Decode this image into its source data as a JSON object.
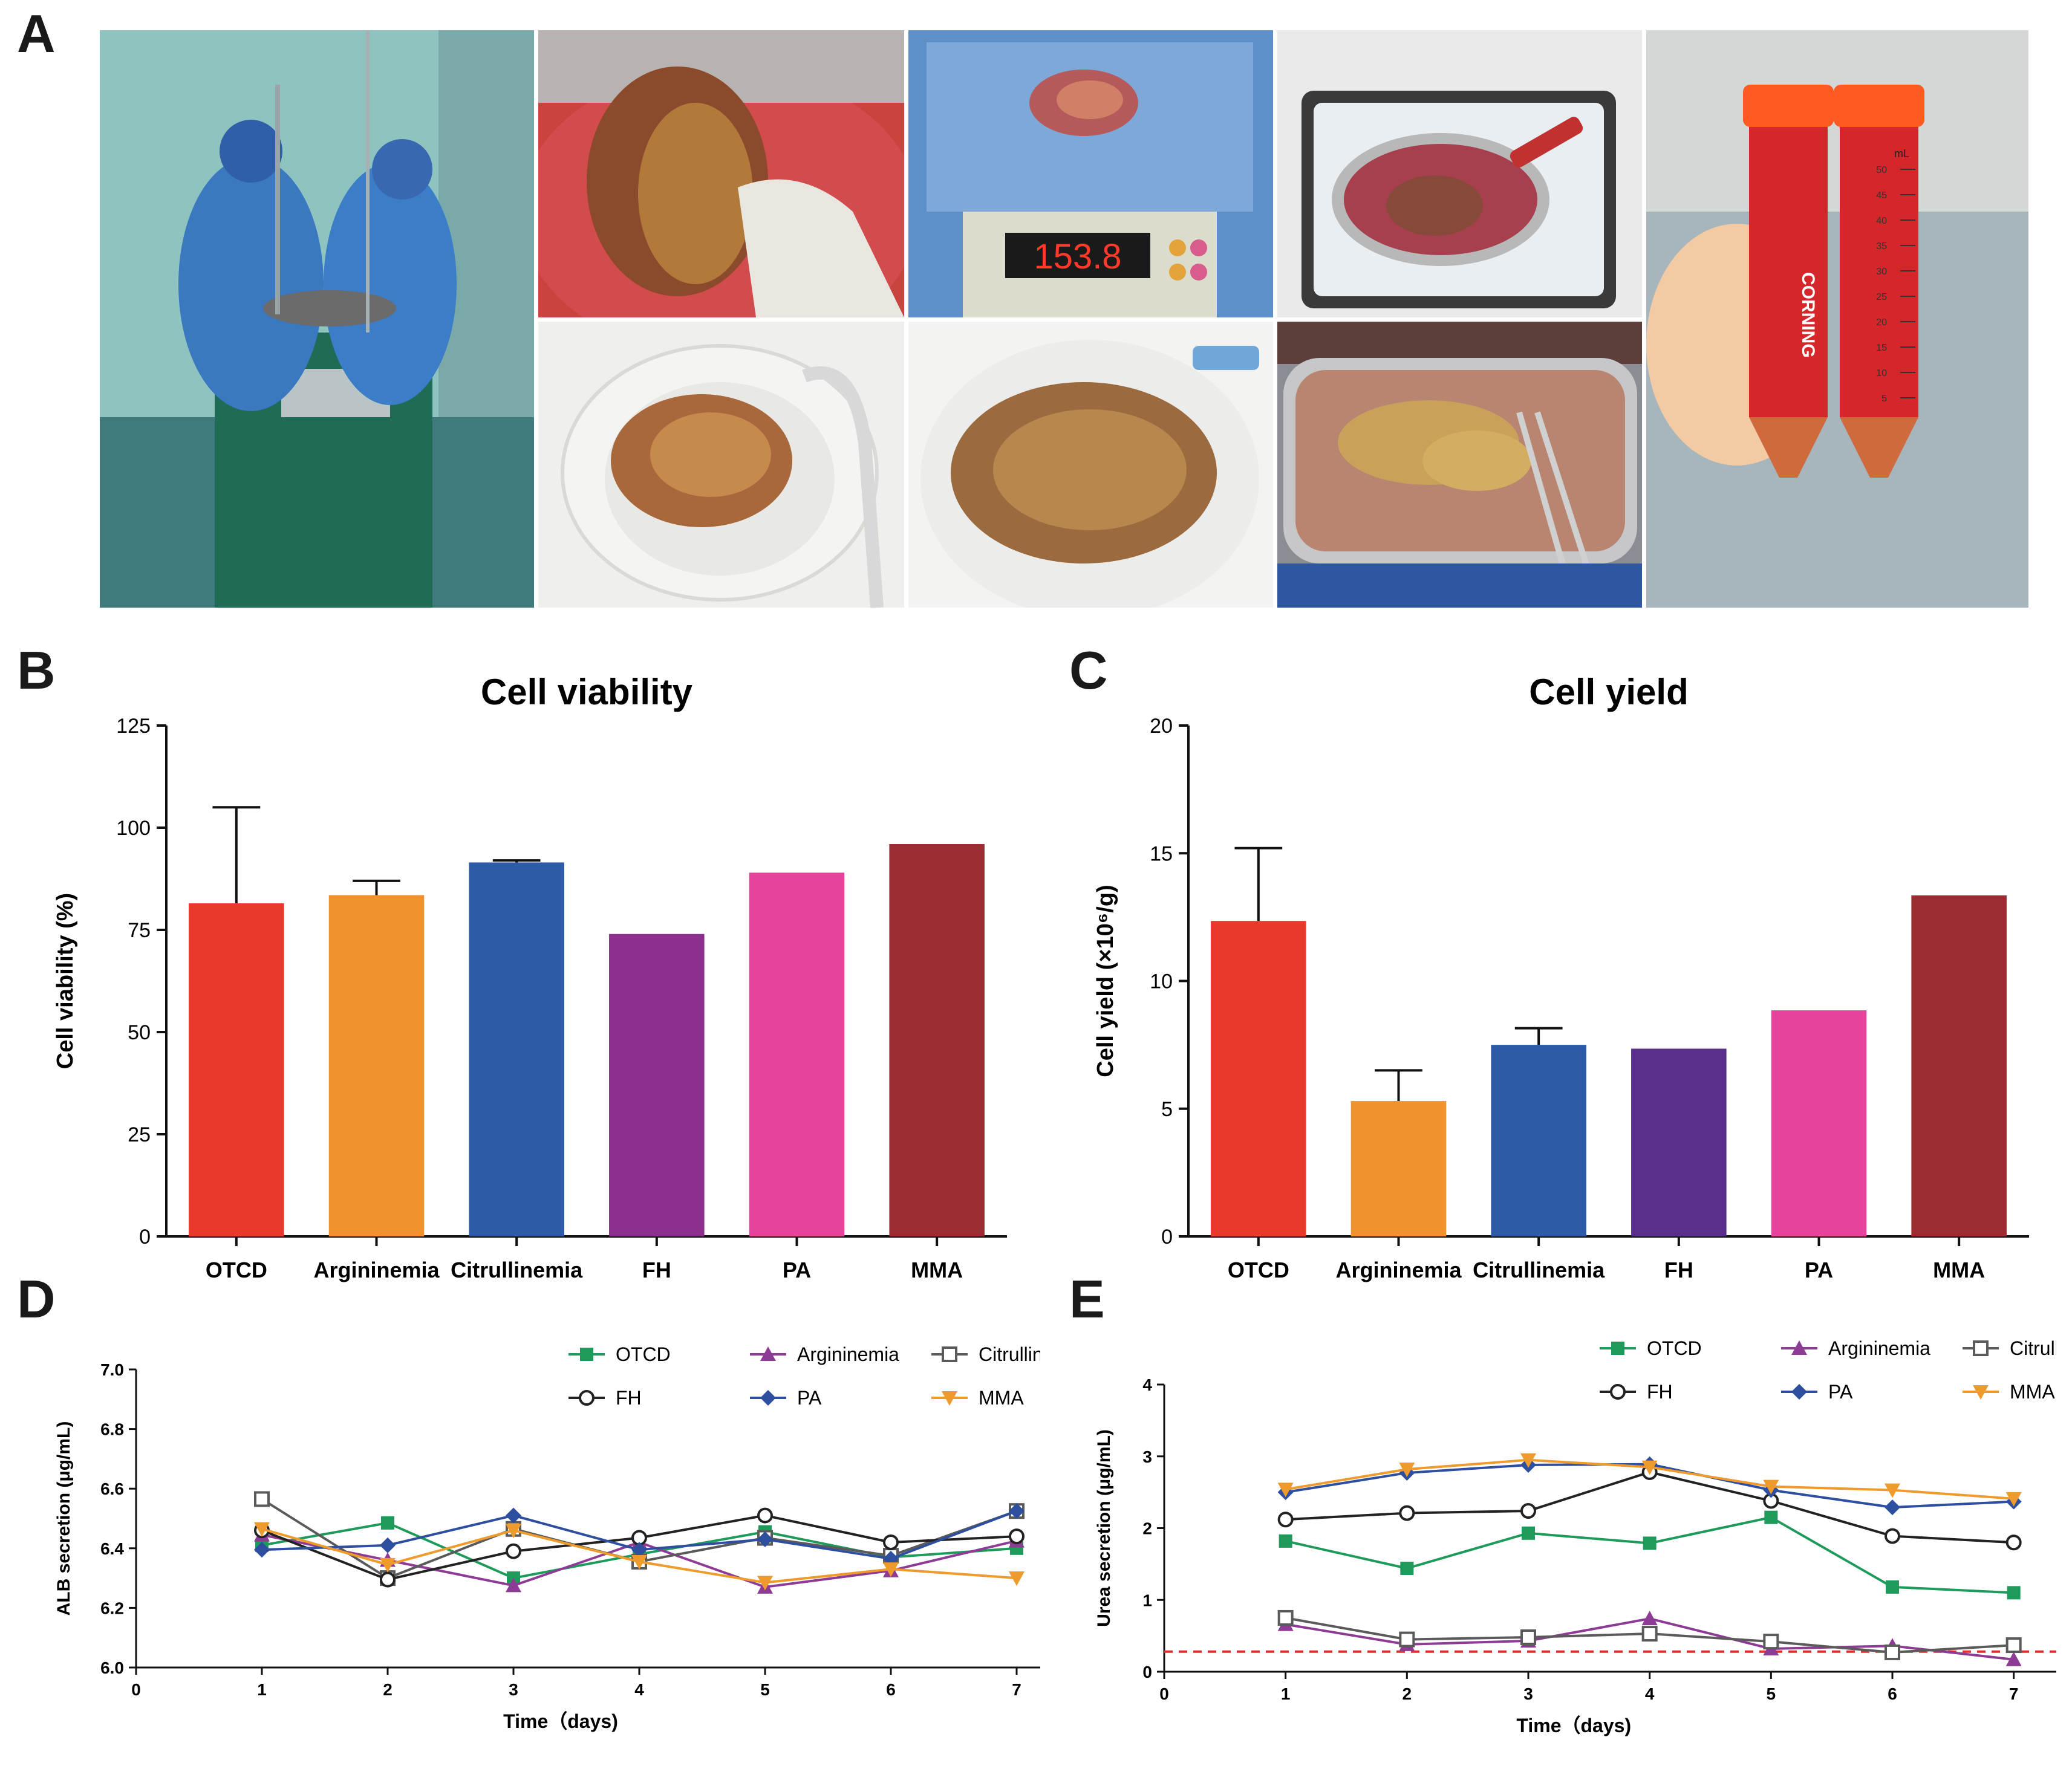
{
  "panels": {
    "A": "A",
    "B": "B",
    "C": "C",
    "D": "D",
    "E": "E"
  },
  "photos": {
    "surgery": "surgery-scene",
    "liver_in_bowl": "liver-in-bowl",
    "scale": {
      "readout": "153.8"
    },
    "perfusion_tray": "perfusion-tray",
    "colander_1": "liver-colander",
    "colander_2": "liver-colander-perfused",
    "digested_tissue": "digested-tissue-tray",
    "tubes": {
      "brand": "CORNING",
      "unit": "mL",
      "marks": [
        "50",
        "45",
        "40",
        "35",
        "30",
        "25",
        "20",
        "15",
        "10",
        "5"
      ]
    }
  },
  "chart_data": [
    {
      "id": "B",
      "type": "bar",
      "title": "Cell viability",
      "xlabel": "",
      "ylabel": "Cell viability (%)",
      "ylim": [
        0,
        125
      ],
      "yticks": [
        0,
        25,
        50,
        75,
        100,
        125
      ],
      "categories": [
        "OTCD",
        "Argininemia",
        "Citrullinemia",
        "FH",
        "PA",
        "MMA"
      ],
      "values": [
        81.5,
        83.5,
        91.5,
        74,
        89,
        96
      ],
      "error_upper": [
        105,
        87,
        92,
        null,
        null,
        null
      ],
      "colors": [
        "#e8392c",
        "#f0922e",
        "#2e5ba8",
        "#8c2f8f",
        "#e5449a",
        "#9b2c31"
      ]
    },
    {
      "id": "C",
      "type": "bar",
      "title": "Cell yield",
      "xlabel": "",
      "ylabel": "Cell yield (×10⁶/g)",
      "ylim": [
        0,
        20
      ],
      "yticks": [
        0,
        5,
        10,
        15,
        20
      ],
      "categories": [
        "OTCD",
        "Argininemia",
        "Citrullinemia",
        "FH",
        "PA",
        "MMA"
      ],
      "values": [
        12.35,
        5.3,
        7.5,
        7.35,
        8.85,
        13.35
      ],
      "error_upper": [
        15.2,
        6.5,
        8.15,
        null,
        null,
        null
      ],
      "colors": [
        "#e8392c",
        "#f0922e",
        "#2e5ba8",
        "#5a2f8c",
        "#e5449a",
        "#9b2c31"
      ]
    },
    {
      "id": "D",
      "type": "line",
      "title": "",
      "xlabel": "Time（days)",
      "ylabel": "ALB secretion (μg/mL)",
      "xlim": [
        0,
        7.5
      ],
      "xticks": [
        0,
        1,
        2,
        3,
        4,
        5,
        6,
        7
      ],
      "ylim": [
        6.0,
        7.0
      ],
      "yticks": [
        "6.0",
        "6.2",
        "6.4",
        "6.6",
        "6.8",
        "7.0"
      ],
      "legend": "top-right",
      "x": [
        1,
        2,
        3,
        4,
        5,
        6,
        7
      ],
      "series": [
        {
          "name": "OTCD",
          "marker": "square",
          "color": "#1e9a5a",
          "values": [
            6.41,
            6.485,
            6.3,
            6.38,
            6.455,
            6.37,
            6.4
          ]
        },
        {
          "name": "Argininemia",
          "marker": "triangle",
          "color": "#8e3b96",
          "values": [
            6.445,
            6.36,
            6.275,
            6.42,
            6.27,
            6.325,
            6.425
          ]
        },
        {
          "name": "Citrullinemia",
          "marker": "open-square",
          "color": "#5a5a5a",
          "values": [
            6.565,
            6.3,
            6.465,
            6.355,
            6.435,
            6.375,
            6.525
          ]
        },
        {
          "name": "FH",
          "marker": "open-circle",
          "color": "#222222",
          "values": [
            6.46,
            6.295,
            6.39,
            6.435,
            6.51,
            6.42,
            6.44
          ]
        },
        {
          "name": "PA",
          "marker": "diamond",
          "color": "#2e4fa0",
          "values": [
            6.395,
            6.41,
            6.51,
            6.395,
            6.43,
            6.365,
            6.525
          ]
        },
        {
          "name": "MMA",
          "marker": "down-triangle",
          "color": "#ef9a2c",
          "values": [
            6.465,
            6.345,
            6.46,
            6.355,
            6.285,
            6.33,
            6.3
          ]
        }
      ]
    },
    {
      "id": "E",
      "type": "line",
      "title": "",
      "xlabel": "Time（days)",
      "ylabel": "Urea secretion (μg/mL)",
      "xlim": [
        0,
        7.5
      ],
      "xticks": [
        0,
        1,
        2,
        3,
        4,
        5,
        6,
        7
      ],
      "ylim": [
        0,
        4
      ],
      "yticks": [
        "0",
        "1",
        "2",
        "3",
        "4"
      ],
      "legend": "top-right",
      "reference_line": {
        "y": 0.28,
        "color": "#e0312f",
        "style": "dashed"
      },
      "x": [
        1,
        2,
        3,
        4,
        5,
        6,
        7
      ],
      "series": [
        {
          "name": "OTCD",
          "marker": "square",
          "color": "#1e9a5a",
          "values": [
            1.82,
            1.44,
            1.93,
            1.79,
            2.15,
            1.18,
            1.1
          ]
        },
        {
          "name": "Argininemia",
          "marker": "triangle",
          "color": "#8e3b96",
          "values": [
            0.66,
            0.38,
            0.43,
            0.74,
            0.32,
            0.36,
            0.17
          ]
        },
        {
          "name": "Citrullinemia",
          "marker": "open-square",
          "color": "#5a5a5a",
          "values": [
            0.75,
            0.45,
            0.48,
            0.53,
            0.42,
            0.27,
            0.37
          ]
        },
        {
          "name": "FH",
          "marker": "open-circle",
          "color": "#222222",
          "values": [
            2.12,
            2.21,
            2.24,
            2.78,
            2.38,
            1.89,
            1.8
          ]
        },
        {
          "name": "PA",
          "marker": "diamond",
          "color": "#2e4fa0",
          "values": [
            2.5,
            2.77,
            2.88,
            2.89,
            2.53,
            2.29,
            2.37
          ]
        },
        {
          "name": "MMA",
          "marker": "down-triangle",
          "color": "#ef9a2c",
          "values": [
            2.54,
            2.82,
            2.95,
            2.85,
            2.58,
            2.53,
            2.41
          ]
        }
      ]
    }
  ]
}
